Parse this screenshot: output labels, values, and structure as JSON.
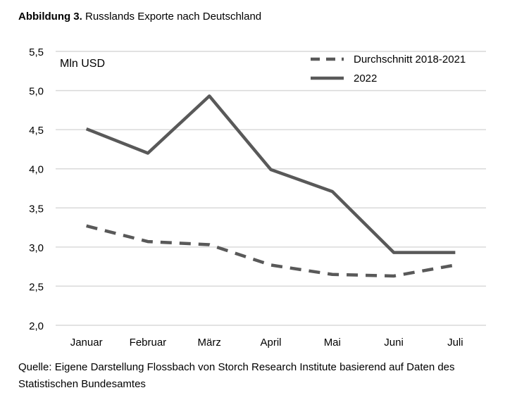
{
  "figure": {
    "label": "Abbildung 3.",
    "title": "Russlands Exporte nach Deutschland"
  },
  "source": "Quelle: Eigene Darstellung Flossbach von Storch Research Institute basierend auf Daten des Statistischen Bundesamtes",
  "chart_data": {
    "type": "line",
    "title": "Russlands Exporte nach Deutschland",
    "unit_label": "Mln USD",
    "xlabel": "",
    "ylabel": "",
    "categories": [
      "Januar",
      "Februar",
      "März",
      "April",
      "Mai",
      "Juni",
      "Juli"
    ],
    "y_ticks": [
      "2,0",
      "2,5",
      "3,0",
      "3,5",
      "4,0",
      "4,5",
      "5,0",
      "5,5"
    ],
    "ylim": [
      2.0,
      5.5
    ],
    "grid": true,
    "legend_position": "top-right",
    "series": [
      {
        "name": "Durchschnitt 2018-2021",
        "style": "dashed",
        "color": "#595959",
        "values": [
          3.27,
          3.07,
          3.03,
          2.77,
          2.65,
          2.63,
          2.77
        ]
      },
      {
        "name": "2022",
        "style": "solid",
        "color": "#595959",
        "values": [
          4.51,
          4.2,
          4.93,
          3.99,
          3.71,
          2.93,
          2.93
        ]
      }
    ]
  }
}
